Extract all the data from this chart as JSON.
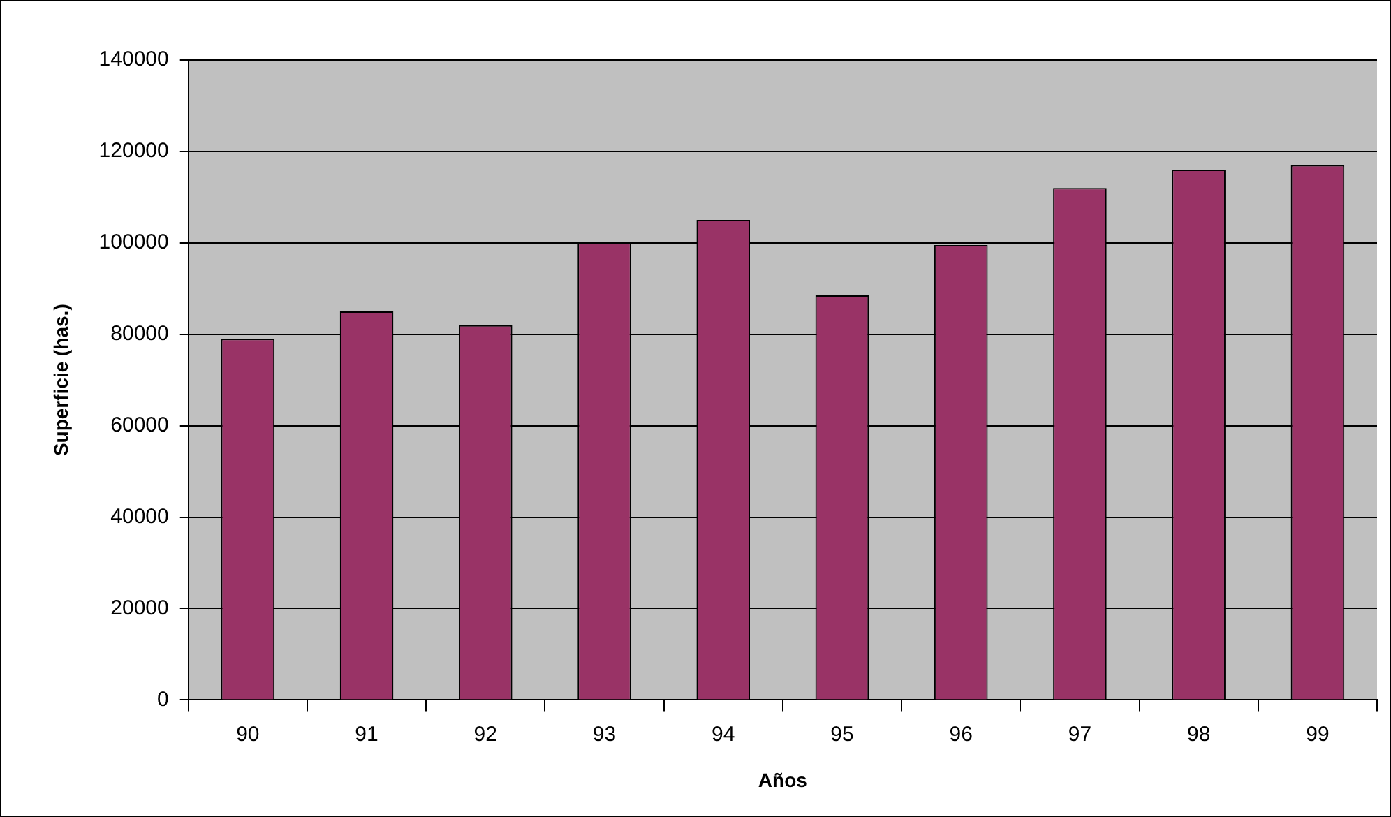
{
  "chart_data": {
    "type": "bar",
    "xlabel": "Años",
    "ylabel": "Superficie (has.)",
    "categories": [
      "90",
      "91",
      "92",
      "93",
      "94",
      "95",
      "96",
      "97",
      "98",
      "99"
    ],
    "values": [
      79000,
      85000,
      82000,
      100000,
      105000,
      88500,
      99500,
      112000,
      116000,
      117000
    ],
    "color": "#993366",
    "ylim": [
      0,
      140000
    ],
    "yticks": [
      0,
      20000,
      40000,
      60000,
      80000,
      100000,
      120000,
      140000
    ],
    "grid": "y",
    "legend": false
  }
}
